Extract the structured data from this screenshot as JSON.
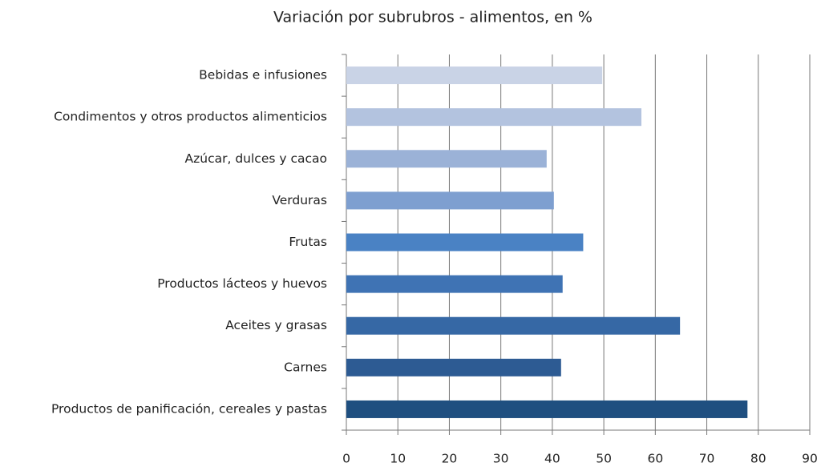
{
  "chart_data": {
    "type": "bar",
    "orientation": "horizontal",
    "title": "Variación por subrubros - alimentos, en %",
    "categories": [
      "Bebidas e infusiones",
      "Condimentos y otros productos alimenticios",
      "Azúcar, dulces y cacao",
      "Verduras",
      "Frutas",
      "Productos lácteos y huevos",
      "Aceites y grasas",
      "Carnes",
      "Productos de panificación, cereales y pastas"
    ],
    "values": [
      49.7,
      57.3,
      38.9,
      40.3,
      46,
      42,
      64.8,
      41.7,
      77.9
    ],
    "colors": [
      "#c9d3e6",
      "#b3c3df",
      "#9bb2d7",
      "#7e9fd0",
      "#4a82c4",
      "#3f73b4",
      "#3668a5",
      "#2d5b93",
      "#1f4f80"
    ],
    "xlim": [
      0,
      90
    ],
    "xticks": [
      0,
      10,
      20,
      30,
      40,
      50,
      60,
      70,
      80,
      90
    ],
    "grid": true
  }
}
